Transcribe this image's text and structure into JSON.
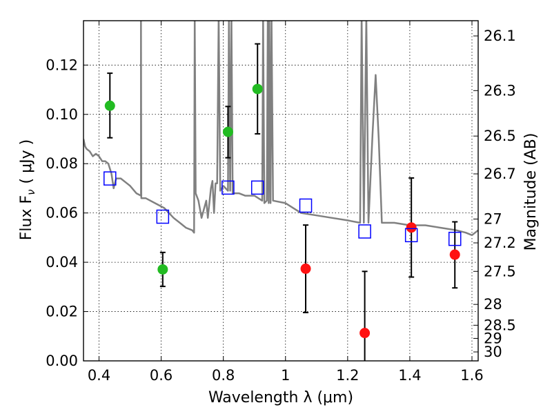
{
  "chart_data": {
    "type": "scatter",
    "xlabel": "Wavelength  λ (μm)",
    "ylabel": "Flux  F",
    "ylabel_sub": "ν",
    "ylabel_unit": "( μJy )",
    "y2label": "Magnitude (AB)",
    "xlim": [
      0.35,
      1.62
    ],
    "ylim": [
      0.0,
      0.138
    ],
    "grid": true,
    "x_ticks": [
      0.4,
      0.6,
      0.8,
      1.0,
      1.2,
      1.4,
      1.6
    ],
    "x_tick_labels": [
      "0.4",
      "0.6",
      "0.8",
      "1",
      "1.2",
      "1.4",
      "1.6"
    ],
    "y_ticks": [
      0.0,
      0.02,
      0.04,
      0.06,
      0.08,
      0.1,
      0.12
    ],
    "y_tick_labels": [
      "0.00",
      "0.02",
      "0.04",
      "0.06",
      "0.08",
      "0.10",
      "0.12"
    ],
    "mag_ticks": [
      26.1,
      26.3,
      26.5,
      26.7,
      27,
      27.2,
      27.5,
      28,
      28.5,
      29,
      30
    ],
    "mag_tick_labels": [
      "26.1",
      "26.3",
      "26.5",
      "26.7",
      "27",
      "27.2",
      "27.5",
      "28",
      "28.5",
      "29",
      "30"
    ],
    "series": [
      {
        "marker": "circle",
        "color": "#22bb22",
        "points": [
          {
            "x": 0.435,
            "y": 0.1035,
            "lo": 0.0905,
            "hi": 0.1167
          },
          {
            "x": 0.605,
            "y": 0.0371,
            "lo": 0.0302,
            "hi": 0.044
          },
          {
            "x": 0.815,
            "y": 0.0929,
            "lo": 0.0824,
            "hi": 0.1032
          },
          {
            "x": 0.91,
            "y": 0.1103,
            "lo": 0.0921,
            "hi": 0.1286
          }
        ]
      },
      {
        "marker": "circle",
        "color": "#ff1111",
        "points": [
          {
            "x": 1.065,
            "y": 0.0374,
            "lo": 0.0196,
            "hi": 0.0551
          },
          {
            "x": 1.255,
            "y": 0.0113,
            "lo": -0.002,
            "hi": 0.0363
          },
          {
            "x": 1.405,
            "y": 0.0541,
            "lo": 0.034,
            "hi": 0.0742
          },
          {
            "x": 1.545,
            "y": 0.0431,
            "lo": 0.0296,
            "hi": 0.0564
          }
        ]
      },
      {
        "marker": "square",
        "color": "#0000ff",
        "points": [
          {
            "x": 0.435,
            "y": 0.074
          },
          {
            "x": 0.605,
            "y": 0.0585
          },
          {
            "x": 0.815,
            "y": 0.0703
          },
          {
            "x": 0.91,
            "y": 0.0703
          },
          {
            "x": 1.065,
            "y": 0.063
          },
          {
            "x": 1.255,
            "y": 0.0525
          },
          {
            "x": 1.405,
            "y": 0.051
          },
          {
            "x": 1.545,
            "y": 0.0495
          }
        ]
      },
      {
        "marker": "line",
        "color": "#808080",
        "points": [
          [
            0.35,
            0.09
          ],
          [
            0.355,
            0.087
          ],
          [
            0.36,
            0.086
          ],
          [
            0.37,
            0.085
          ],
          [
            0.38,
            0.083
          ],
          [
            0.39,
            0.084
          ],
          [
            0.4,
            0.083
          ],
          [
            0.41,
            0.081
          ],
          [
            0.42,
            0.081
          ],
          [
            0.43,
            0.08
          ],
          [
            0.44,
            0.076
          ],
          [
            0.447,
            0.07
          ],
          [
            0.455,
            0.074
          ],
          [
            0.47,
            0.074
          ],
          [
            0.49,
            0.072
          ],
          [
            0.5,
            0.071
          ],
          [
            0.52,
            0.068
          ],
          [
            0.535,
            0.067
          ],
          [
            0.535,
            0.14
          ],
          [
            0.536,
            0.066
          ],
          [
            0.55,
            0.066
          ],
          [
            0.58,
            0.064
          ],
          [
            0.61,
            0.062
          ],
          [
            0.64,
            0.058
          ],
          [
            0.66,
            0.056
          ],
          [
            0.68,
            0.054
          ],
          [
            0.7,
            0.053
          ],
          [
            0.706,
            0.052
          ],
          [
            0.708,
            0.14
          ],
          [
            0.711,
            0.068
          ],
          [
            0.72,
            0.065
          ],
          [
            0.73,
            0.058
          ],
          [
            0.745,
            0.065
          ],
          [
            0.75,
            0.058
          ],
          [
            0.76,
            0.07
          ],
          [
            0.765,
            0.073
          ],
          [
            0.77,
            0.06
          ],
          [
            0.775,
            0.072
          ],
          [
            0.78,
            0.072
          ],
          [
            0.785,
            0.14
          ],
          [
            0.79,
            0.069
          ],
          [
            0.8,
            0.071
          ],
          [
            0.815,
            0.069
          ],
          [
            0.818,
            0.14
          ],
          [
            0.822,
            0.069
          ],
          [
            0.826,
            0.14
          ],
          [
            0.83,
            0.068
          ],
          [
            0.85,
            0.068
          ],
          [
            0.87,
            0.067
          ],
          [
            0.9,
            0.067
          ],
          [
            0.925,
            0.065
          ],
          [
            0.928,
            0.14
          ],
          [
            0.932,
            0.064
          ],
          [
            0.94,
            0.065
          ],
          [
            0.943,
            0.14
          ],
          [
            0.946,
            0.064
          ],
          [
            0.948,
            0.14
          ],
          [
            0.952,
            0.064
          ],
          [
            0.955,
            0.14
          ],
          [
            0.96,
            0.065
          ],
          [
            1.0,
            0.064
          ],
          [
            1.05,
            0.06
          ],
          [
            1.1,
            0.059
          ],
          [
            1.15,
            0.058
          ],
          [
            1.2,
            0.057
          ],
          [
            1.24,
            0.056
          ],
          [
            1.245,
            0.14
          ],
          [
            1.252,
            0.056
          ],
          [
            1.26,
            0.14
          ],
          [
            1.267,
            0.056
          ],
          [
            1.28,
            0.092
          ],
          [
            1.29,
            0.116
          ],
          [
            1.3,
            0.09
          ],
          [
            1.31,
            0.056
          ],
          [
            1.35,
            0.056
          ],
          [
            1.4,
            0.055
          ],
          [
            1.45,
            0.055
          ],
          [
            1.5,
            0.054
          ],
          [
            1.55,
            0.053
          ],
          [
            1.58,
            0.052
          ],
          [
            1.6,
            0.051
          ],
          [
            1.62,
            0.053
          ]
        ]
      }
    ]
  }
}
